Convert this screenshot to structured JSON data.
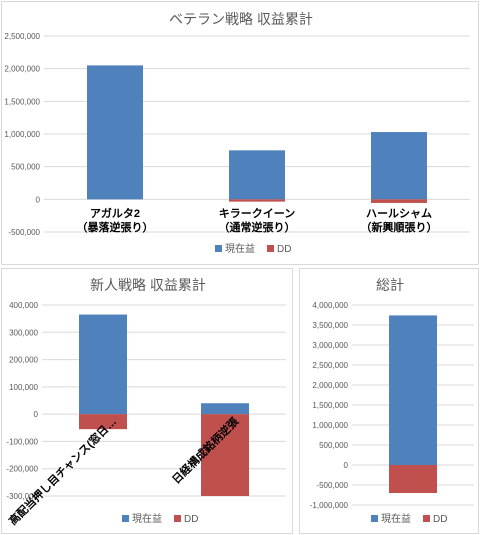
{
  "colors": {
    "profit": "#4f81bd",
    "dd": "#c0504d"
  },
  "chart_data": [
    {
      "type": "bar",
      "title": "ベテラン戦略 収益累計",
      "categories": [
        [
          "アガルタ2",
          "（暴落逆張り）"
        ],
        [
          "キラークイーン",
          "（通常逆張り）"
        ],
        [
          "ハールシャム",
          "（新興順張り）"
        ]
      ],
      "series": [
        {
          "name": "現在益",
          "values": [
            2050000,
            750000,
            1030000
          ]
        },
        {
          "name": "DD",
          "values": [
            0,
            -35000,
            -55000
          ]
        }
      ],
      "ylim": [
        -500000,
        2500000
      ],
      "ticks": [
        -500000,
        0,
        500000,
        1000000,
        1500000,
        2000000,
        2500000
      ],
      "tick_labels": [
        "-500,000",
        "0",
        "500,000",
        "1,000,000",
        "1,500,000",
        "2,000,000",
        "2,500,000"
      ],
      "grid": true,
      "legend": "bottom"
    },
    {
      "type": "bar",
      "title": "新人戦略 収益累計",
      "categories": [
        [
          "高配当押し目チャンス(窓日…"
        ],
        [
          "日経構成銘柄逆張"
        ]
      ],
      "series": [
        {
          "name": "現在益",
          "values": [
            365000,
            40000
          ]
        },
        {
          "name": "DD",
          "values": [
            -55000,
            -300000
          ]
        }
      ],
      "ylim": [
        -300000,
        400000
      ],
      "ticks": [
        -300000,
        -200000,
        -100000,
        0,
        100000,
        200000,
        300000,
        400000
      ],
      "tick_labels": [
        "-300,000",
        "-200,000",
        "-100,000",
        "0",
        "100,000",
        "200,000",
        "300,000",
        "400,000"
      ],
      "grid": true,
      "legend": "bottom"
    },
    {
      "type": "bar",
      "title": "総計",
      "categories": [
        [
          ""
        ]
      ],
      "series": [
        {
          "name": "現在益",
          "values": [
            3740000
          ]
        },
        {
          "name": "DD",
          "values": [
            -700000
          ]
        }
      ],
      "ylim": [
        -1000000,
        4000000
      ],
      "ticks": [
        -1000000,
        -500000,
        0,
        500000,
        1000000,
        1500000,
        2000000,
        2500000,
        3000000,
        3500000,
        4000000
      ],
      "tick_labels": [
        "-1,000,000",
        "-500,000",
        "0",
        "500,000",
        "1,000,000",
        "1,500,000",
        "2,000,000",
        "2,500,000",
        "3,000,000",
        "3,500,000",
        "4,000,000"
      ],
      "grid": true,
      "legend": "bottom"
    }
  ]
}
